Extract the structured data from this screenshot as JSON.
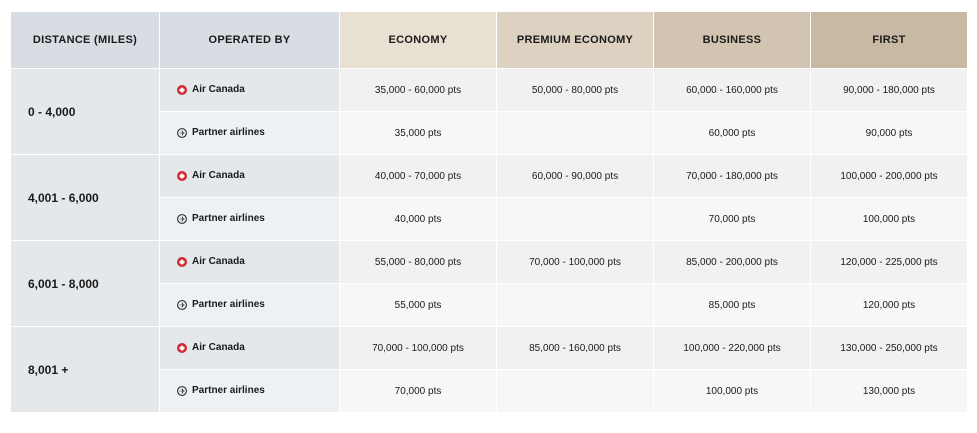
{
  "headers": {
    "distance": "DISTANCE (MILES)",
    "operated_by": "OPERATED BY",
    "economy": "ECONOMY",
    "premium_economy": "PREMIUM ECONOMY",
    "business": "BUSINESS",
    "first": "FIRST"
  },
  "rows": [
    {
      "distance": "0 - 4,000",
      "air_canada": {
        "label": "Air Canada",
        "economy": "35,000 - 60,000 pts",
        "premium_economy": "50,000 - 80,000 pts",
        "business": "60,000 - 160,000 pts",
        "first": "90,000 - 180,000 pts"
      },
      "partner": {
        "label": "Partner airlines",
        "economy": "35,000 pts",
        "premium_economy": "",
        "business": "60,000 pts",
        "first": "90,000 pts"
      }
    },
    {
      "distance": "4,001 - 6,000",
      "air_canada": {
        "label": "Air Canada",
        "economy": "40,000 - 70,000 pts",
        "premium_economy": "60,000 - 90,000 pts",
        "business": "70,000 - 180,000 pts",
        "first": "100,000 - 200,000 pts"
      },
      "partner": {
        "label": "Partner airlines",
        "economy": "40,000 pts",
        "premium_economy": "",
        "business": "70,000 pts",
        "first": "100,000 pts"
      }
    },
    {
      "distance": "6,001 - 8,000",
      "air_canada": {
        "label": "Air Canada",
        "economy": "55,000 - 80,000 pts",
        "premium_economy": "70,000 - 100,000 pts",
        "business": "85,000 - 200,000 pts",
        "first": "120,000 - 225,000 pts"
      },
      "partner": {
        "label": "Partner airlines",
        "economy": "55,000 pts",
        "premium_economy": "",
        "business": "85,000 pts",
        "first": "120,000 pts"
      }
    },
    {
      "distance": "8,001 +",
      "air_canada": {
        "label": "Air Canada",
        "economy": "70,000 - 100,000 pts",
        "premium_economy": "85,000 - 160,000 pts",
        "business": "100,000 - 220,000 pts",
        "first": "130,000 - 250,000 pts"
      },
      "partner": {
        "label": "Partner airlines",
        "economy": "70,000 pts",
        "premium_economy": "",
        "business": "100,000 pts",
        "first": "130,000 pts"
      }
    }
  ],
  "icons": {
    "air_canada": "maple-leaf-icon",
    "partner": "plane-circle-icon"
  },
  "colors": {
    "air_canada_red": "#d22630",
    "header_economy": "#e8e0d2",
    "header_premium_economy": "#ddd2c2",
    "header_business": "#d1c4b0",
    "header_first": "#c8b9a3"
  }
}
